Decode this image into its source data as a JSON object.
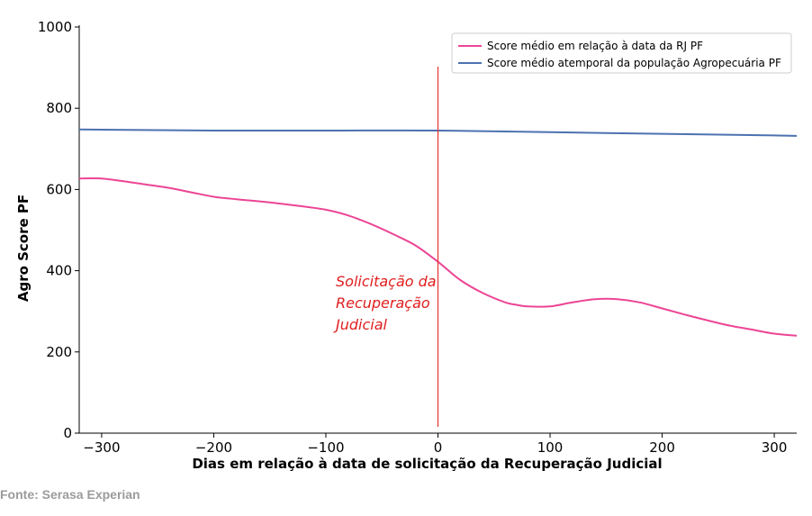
{
  "chart_data": {
    "type": "line",
    "title": "",
    "xlabel": "Dias em relação à data de solicitação da Recuperação Judicial",
    "ylabel": "Agro Score PF",
    "xlim": [
      -320,
      320
    ],
    "ylim": [
      0,
      1000
    ],
    "xticks": [
      -300,
      -200,
      -100,
      0,
      100,
      200,
      300
    ],
    "xtick_labels": [
      "−300",
      "−200",
      "−100",
      "0",
      "100",
      "200",
      "300"
    ],
    "yticks": [
      0,
      200,
      400,
      600,
      800,
      1000
    ],
    "ytick_labels": [
      "0",
      "200",
      "400",
      "600",
      "800",
      "1000"
    ],
    "grid": false,
    "legend_position": "top-right",
    "series": [
      {
        "name": "Score médio em relação à data da RJ PF",
        "color": "#ec4595",
        "points": [
          [
            -320,
            627
          ],
          [
            -300,
            627
          ],
          [
            -280,
            620
          ],
          [
            -260,
            612
          ],
          [
            -240,
            604
          ],
          [
            -220,
            593
          ],
          [
            -200,
            582
          ],
          [
            -180,
            576
          ],
          [
            -160,
            571
          ],
          [
            -140,
            565
          ],
          [
            -120,
            558
          ],
          [
            -100,
            550
          ],
          [
            -80,
            536
          ],
          [
            -60,
            515
          ],
          [
            -40,
            490
          ],
          [
            -20,
            462
          ],
          [
            0,
            422
          ],
          [
            20,
            377
          ],
          [
            40,
            345
          ],
          [
            60,
            322
          ],
          [
            70,
            316
          ],
          [
            80,
            312
          ],
          [
            100,
            312
          ],
          [
            120,
            322
          ],
          [
            140,
            330
          ],
          [
            160,
            330
          ],
          [
            180,
            322
          ],
          [
            200,
            307
          ],
          [
            220,
            292
          ],
          [
            240,
            278
          ],
          [
            260,
            265
          ],
          [
            280,
            255
          ],
          [
            300,
            245
          ],
          [
            320,
            240
          ]
        ]
      },
      {
        "name": "Score médio atemporal da população Agropecuária PF",
        "color": "#4c72b0",
        "points": [
          [
            -320,
            748
          ],
          [
            -200,
            745
          ],
          [
            -100,
            745
          ],
          [
            0,
            745
          ],
          [
            100,
            741
          ],
          [
            200,
            737
          ],
          [
            300,
            733
          ],
          [
            320,
            732
          ]
        ]
      }
    ],
    "vline": {
      "x": 0,
      "color": "#e8322f"
    },
    "annotation": {
      "lines": [
        "Solicitação da",
        "Recuperação",
        "Judicial"
      ],
      "color": "#e01e1e"
    }
  },
  "source_note": "Fonte: Serasa Experian"
}
